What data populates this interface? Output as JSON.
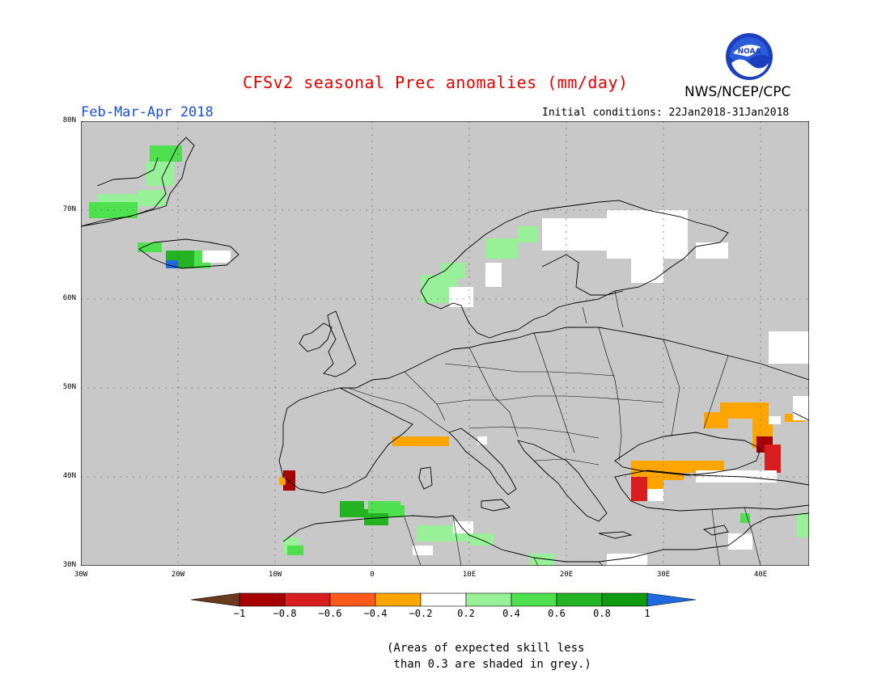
{
  "title": "CFSv2 seasonal Prec anomalies (mm/day)",
  "agency": "NWS/NCEP/CPC",
  "logo_text": "NOAA",
  "period": "Feb-Mar-Apr 2018",
  "initial_conditions": "Initial conditions: 22Jan2018-31Jan2018",
  "lat_labels": [
    "80N",
    "70N",
    "60N",
    "50N",
    "40N",
    "30N"
  ],
  "lon_labels": [
    "30W",
    "20W",
    "10W",
    "0",
    "10E",
    "20E",
    "30E",
    "40E"
  ],
  "colorbar": {
    "labels": [
      "−1",
      "−0.8",
      "−0.6",
      "−0.4",
      "−0.2",
      "0.2",
      "0.4",
      "0.6",
      "0.8",
      "1"
    ],
    "colors": [
      "#6b3a1e",
      "#a60000",
      "#d81e1e",
      "#ff5a1a",
      "#ffa500",
      "#ffffff",
      "#98f098",
      "#4ee04e",
      "#23b323",
      "#0f9a0f",
      "#1f6ae0"
    ]
  },
  "note_line1": "(Areas of expected skill less",
  "note_line2": " than 0.3 are shaded in grey.)",
  "map_colors": {
    "grey": "#c8c8c8",
    "white": "#ffffff",
    "orange": "#ffa500",
    "red": "#d81e1e",
    "darkred": "#a60000",
    "lightgreen": "#98f098",
    "green": "#4ee04e",
    "darkgreen": "#23b323",
    "blue": "#1f6ae0"
  }
}
